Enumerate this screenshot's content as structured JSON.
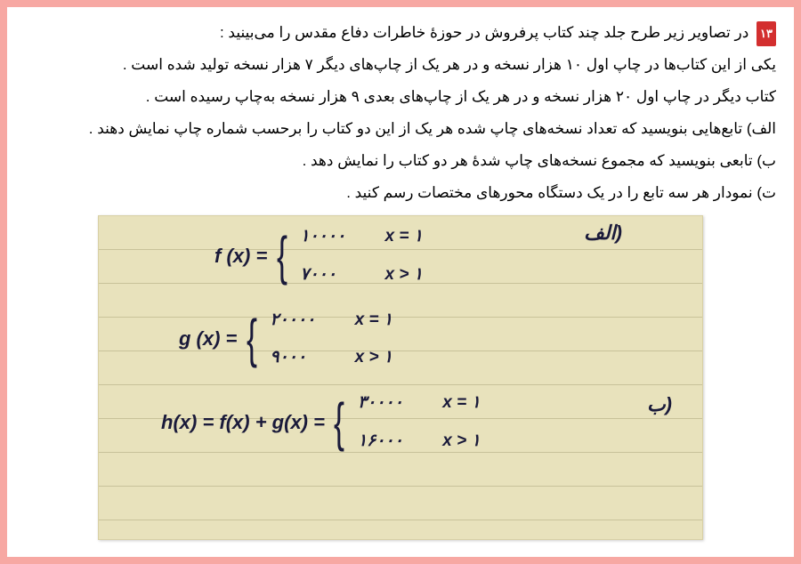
{
  "question_number": "۱۳",
  "text": {
    "line1": "در تصاویر زیر طرح جلد چند کتاب پرفروش در حوزهٔ خاطرات دفاع مقدس را می‌بینید :",
    "line2": "یکی از این کتاب‌ها در چاپ اول ۱۰ هزار نسخه و در هر یک از چاپ‌های دیگر ۷ هزار نسخه تولید شده است .",
    "line3": "کتاب دیگر در چاپ اول ۲۰ هزار نسخه و در هر یک از چاپ‌های بعدی ۹ هزار نسخه به‌چاپ رسیده است .",
    "line4": "الف) تابع‌هایی بنویسید که تعداد نسخه‌های چاپ شده هر یک از این دو کتاب را برحسب شماره چاپ نمایش دهند .",
    "line5": "ب) تابعی بنویسید که مجموع نسخه‌های چاپ شدهٔ هر دو کتاب را نمایش دهد .",
    "line6": "ت) نمودار هر سه تابع را در یک دستگاه محورهای مختصات رسم کنید ."
  },
  "notebook": {
    "alef_label": "الف)",
    "beh_label": "ب)",
    "f": {
      "name": "f (x) =",
      "case1_val": "۱۰۰۰۰",
      "case1_cond": "x = ۱",
      "case2_val": "۷۰۰۰",
      "case2_cond": "x > ۱"
    },
    "g": {
      "name": "g (x) =",
      "case1_val": "۲۰۰۰۰",
      "case1_cond": "x = ۱",
      "case2_val": "۹۰۰۰",
      "case2_cond": "x > ۱"
    },
    "h": {
      "name": "h(x) = f(x) + g(x) =",
      "case1_val": "۳۰۰۰۰",
      "case1_cond": "x = ۱",
      "case2_val": "۱۶۰۰۰",
      "case2_cond": "x > ۱"
    }
  },
  "colors": {
    "page_border": "#f7a8a3",
    "page_bg": "#ffffff",
    "text": "#000000",
    "badge_bg": "#d32f2f",
    "badge_text": "#ffffff",
    "notebook_bg": "#e8e2bc",
    "notebook_line": "#c8c29a",
    "handwriting": "#1a1a3a"
  }
}
